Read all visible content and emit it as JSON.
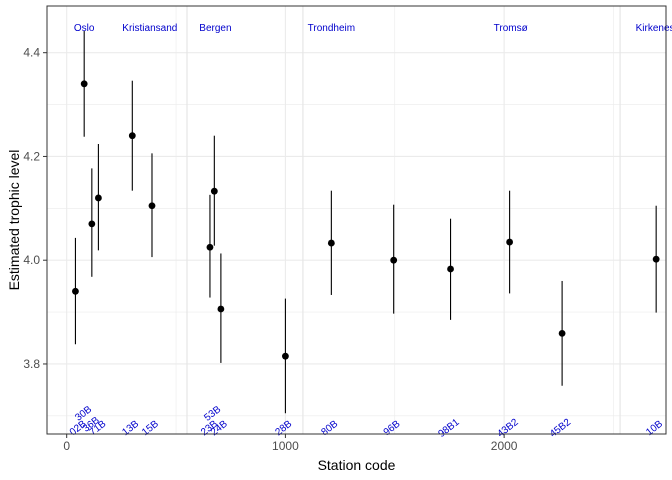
{
  "chart_data": {
    "type": "scatter",
    "title": "",
    "xlabel": "Station code",
    "ylabel": "Estimated trophic level",
    "xlim": [
      -90,
      2740
    ],
    "ylim": [
      3.665,
      4.49
    ],
    "x_ticks": [
      0,
      1000,
      2000
    ],
    "y_ticks": [
      3.8,
      4.0,
      4.2,
      4.4
    ],
    "x_tick_labels": [
      "0",
      "1000",
      "2000"
    ],
    "y_tick_labels": [
      "3.8",
      "4.0",
      "4.2",
      "4.4"
    ],
    "grid": true,
    "error_bars": true,
    "points": [
      {
        "x": 40,
        "y": 3.94,
        "lo": 3.838,
        "hi": 4.043
      },
      {
        "x": 80,
        "y": 4.34,
        "lo": 4.238,
        "hi": 4.442
      },
      {
        "x": 115,
        "y": 4.07,
        "lo": 3.968,
        "hi": 4.177
      },
      {
        "x": 145,
        "y": 4.12,
        "lo": 4.019,
        "hi": 4.224
      },
      {
        "x": 300,
        "y": 4.24,
        "lo": 4.134,
        "hi": 4.346
      },
      {
        "x": 390,
        "y": 4.105,
        "lo": 4.006,
        "hi": 4.206
      },
      {
        "x": 655,
        "y": 4.025,
        "lo": 3.928,
        "hi": 4.126
      },
      {
        "x": 675,
        "y": 4.133,
        "lo": 4.028,
        "hi": 4.24
      },
      {
        "x": 705,
        "y": 3.906,
        "lo": 3.802,
        "hi": 4.013
      },
      {
        "x": 1000,
        "y": 3.815,
        "lo": 3.705,
        "hi": 3.926
      },
      {
        "x": 1210,
        "y": 4.033,
        "lo": 3.933,
        "hi": 4.134
      },
      {
        "x": 1495,
        "y": 4.0,
        "lo": 3.897,
        "hi": 4.107
      },
      {
        "x": 1755,
        "y": 3.983,
        "lo": 3.885,
        "hi": 4.08
      },
      {
        "x": 2025,
        "y": 4.035,
        "lo": 3.936,
        "hi": 4.134
      },
      {
        "x": 2265,
        "y": 3.859,
        "lo": 3.758,
        "hi": 3.96
      },
      {
        "x": 2695,
        "y": 4.002,
        "lo": 3.899,
        "hi": 4.105
      }
    ],
    "city_annotations": [
      {
        "label": "Oslo",
        "x": 80
      },
      {
        "label": "Kristiansand",
        "x": 380
      },
      {
        "label": "Bergen",
        "x": 680
      },
      {
        "label": "Trondheim",
        "x": 1210
      },
      {
        "label": "Tromsø",
        "x": 2030
      },
      {
        "label": "Kirkenes",
        "x": 2690
      }
    ],
    "city_dividers_x": [
      550,
      1080,
      2530
    ],
    "station_labels": [
      {
        "label": "30B",
        "x": 85,
        "y": 3.7
      },
      {
        "label": "02B",
        "x": 60,
        "y": 3.672
      },
      {
        "label": "36B",
        "x": 120,
        "y": 3.679
      },
      {
        "label": "71B",
        "x": 150,
        "y": 3.672
      },
      {
        "label": "13B",
        "x": 300,
        "y": 3.672
      },
      {
        "label": "15B",
        "x": 390,
        "y": 3.672
      },
      {
        "label": "53B",
        "x": 675,
        "y": 3.7
      },
      {
        "label": "23B",
        "x": 660,
        "y": 3.672
      },
      {
        "label": "24B",
        "x": 705,
        "y": 3.672
      },
      {
        "label": "28B",
        "x": 1000,
        "y": 3.672
      },
      {
        "label": "80B",
        "x": 1210,
        "y": 3.672
      },
      {
        "label": "96B",
        "x": 1495,
        "y": 3.672
      },
      {
        "label": "98B1",
        "x": 1755,
        "y": 3.672
      },
      {
        "label": "43B2",
        "x": 2025,
        "y": 3.672
      },
      {
        "label": "45B2",
        "x": 2265,
        "y": 3.672
      },
      {
        "label": "10B",
        "x": 2695,
        "y": 3.672
      }
    ]
  },
  "colors": {
    "point": "#000000",
    "label": "#0000cc",
    "grid": "#ebebeb",
    "divider": "#e6e6e6",
    "panel_border": "#333333"
  }
}
